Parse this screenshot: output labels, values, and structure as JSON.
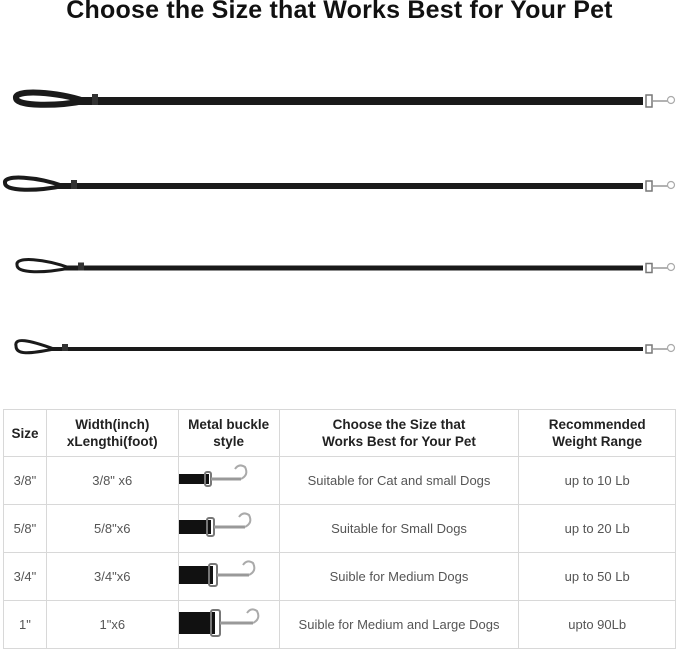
{
  "title": "Choose the Size that Works Best for Your Pet",
  "table": {
    "headers": [
      {
        "line1": "Size",
        "line2": ""
      },
      {
        "line1": "Width(inch)",
        "line2": "xLengthi(foot)"
      },
      {
        "line1": "Metal buckle",
        "line2": "style"
      },
      {
        "line1": "Choose the Size that",
        "line2": "Works Best for Your Pet"
      },
      {
        "line1": "Recommended",
        "line2": "Weight Range"
      }
    ],
    "rows": [
      {
        "size": "3/8\"",
        "dimensions": "3/8\" x6",
        "description": "Suitable for Cat and small Dogs",
        "weight": "up to 10 Lb"
      },
      {
        "size": "5/8\"",
        "dimensions": "5/8\"x6",
        "description": "Suitable for Small Dogs",
        "weight": "up to 20 Lb"
      },
      {
        "size": "3/4\"",
        "dimensions": "3/4\"x6",
        "description": "Suible for Medium Dogs",
        "weight": "up to 50 Lb"
      },
      {
        "size": "1\"",
        "dimensions": "1\"x6",
        "description": "Suible for Medium and Large Dogs",
        "weight": "upto 90Lb"
      }
    ]
  }
}
